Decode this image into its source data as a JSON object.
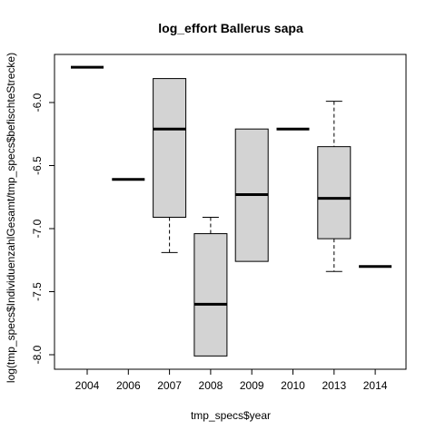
{
  "chart_data": {
    "type": "boxplot",
    "title": "log_effort Ballerus sapa",
    "xlabel": "tmp_specs$year",
    "ylabel": "log(tmp_specs$IndividuenzahlGesamt/tmp_specs$befischteStrecke)",
    "ylim": [
      -8.0,
      -5.9
    ],
    "yticks": [
      -6.0,
      -6.5,
      -7.0,
      -7.5,
      -8.0
    ],
    "ytick_labels": [
      "-6.0",
      "-6.5",
      "-7.0",
      "-7.5",
      "-8.0"
    ],
    "grid": false,
    "legend": "none",
    "categories": [
      "2004",
      "2006",
      "2007",
      "2008",
      "2009",
      "2010",
      "2013",
      "2014"
    ],
    "boxes": [
      {
        "label": "2004",
        "whisker_low": -5.72,
        "q1": -5.72,
        "median": -5.72,
        "q3": -5.72,
        "whisker_high": -5.72
      },
      {
        "label": "2006",
        "whisker_low": -6.61,
        "q1": -6.61,
        "median": -6.61,
        "q3": -6.61,
        "whisker_high": -6.61
      },
      {
        "label": "2007",
        "whisker_low": -7.19,
        "q1": -6.91,
        "median": -6.21,
        "q3": -5.81,
        "whisker_high": -5.81
      },
      {
        "label": "2008",
        "whisker_low": -8.01,
        "q1": -8.01,
        "median": -7.6,
        "q3": -7.04,
        "whisker_high": -6.91
      },
      {
        "label": "2009",
        "whisker_low": -7.26,
        "q1": -7.26,
        "median": -6.73,
        "q3": -6.21,
        "whisker_high": -6.21
      },
      {
        "label": "2010",
        "whisker_low": -6.21,
        "q1": -6.21,
        "median": -6.21,
        "q3": -6.21,
        "whisker_high": -6.21
      },
      {
        "label": "2013",
        "whisker_low": -7.34,
        "q1": -7.08,
        "median": -6.76,
        "q3": -6.35,
        "whisker_high": -5.99
      },
      {
        "label": "2014",
        "whisker_low": -7.3,
        "q1": -7.3,
        "median": -7.3,
        "q3": -7.3,
        "whisker_high": -7.3
      }
    ],
    "box_fill": "#d3d3d3",
    "line_color": "#000000"
  }
}
